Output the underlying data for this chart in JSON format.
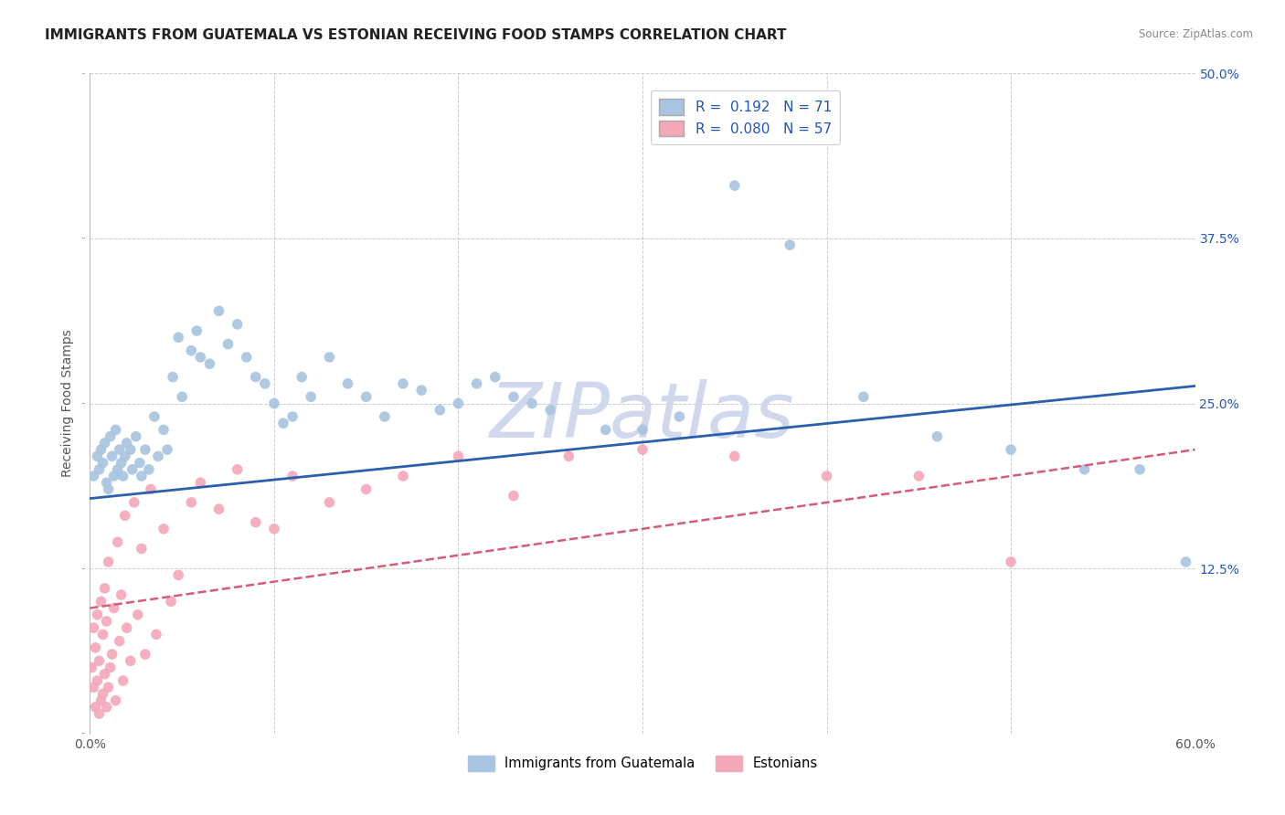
{
  "title": "IMMIGRANTS FROM GUATEMALA VS ESTONIAN RECEIVING FOOD STAMPS CORRELATION CHART",
  "source": "Source: ZipAtlas.com",
  "ylabel": "Receiving Food Stamps",
  "watermark": "ZIPatlas",
  "xlim": [
    0.0,
    0.6
  ],
  "ylim": [
    0.0,
    0.5
  ],
  "xticks": [
    0.0,
    0.1,
    0.2,
    0.3,
    0.4,
    0.5,
    0.6
  ],
  "yticks": [
    0.0,
    0.125,
    0.25,
    0.375,
    0.5
  ],
  "scatter_guatemala_color": "#a8c4e0",
  "scatter_estonian_color": "#f4a7b9",
  "trendline_guatemala_color": "#2b5fad",
  "trendline_estonian_color": "#d45c7a",
  "background_color": "#ffffff",
  "grid_color": "#cccccc",
  "title_fontsize": 11,
  "axis_label_fontsize": 10,
  "tick_fontsize": 10,
  "watermark_color": "#d0d8ee",
  "watermark_fontsize": 60,
  "legend_box_color_1": "#a8c4e0",
  "legend_box_color_2": "#f4a7b9",
  "legend_text_color": "#2255bb",
  "right_tick_color": "#2255bb",
  "bottom_legend_label_1": "Immigrants from Guatemala",
  "bottom_legend_label_2": "Estonians"
}
